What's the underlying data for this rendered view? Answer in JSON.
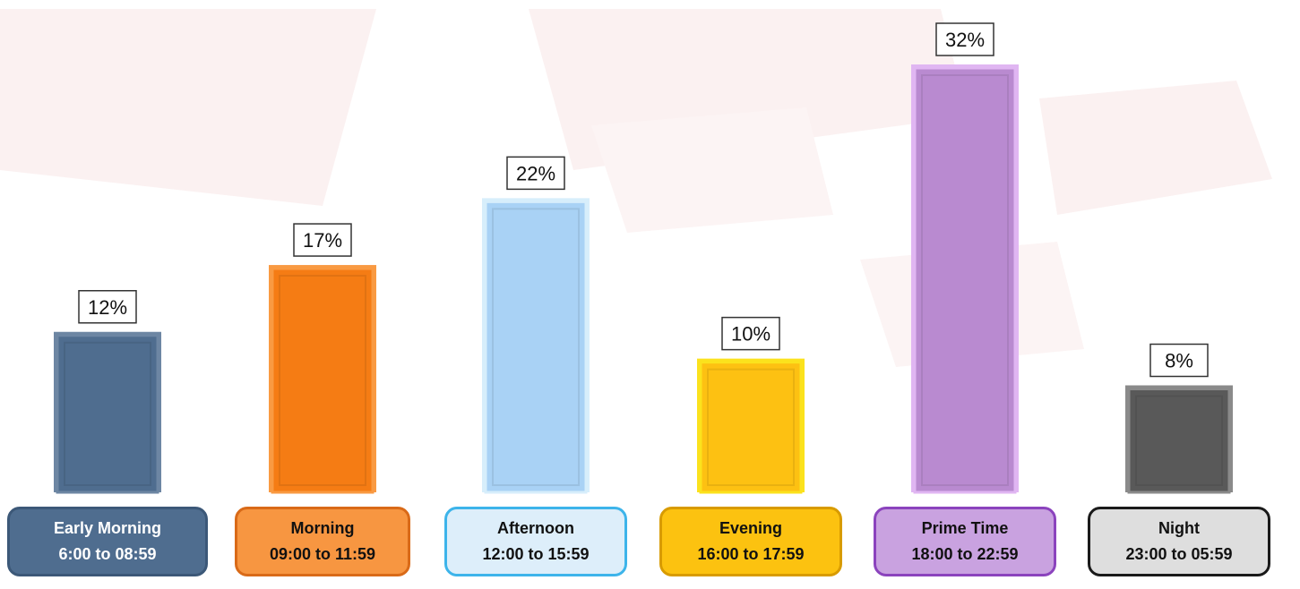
{
  "chart_data": {
    "type": "bar",
    "categories": [
      "Early Morning",
      "Morning",
      "Afternoon",
      "Evening",
      "Prime Time",
      "Night"
    ],
    "time_ranges": [
      "6:00 to 08:59",
      "09:00 to 11:59",
      "12:00 to 15:59",
      "16:00 to 17:59",
      "18:00 to 22:59",
      "23:00 to 05:59"
    ],
    "values": [
      12,
      17,
      22,
      10,
      32,
      8
    ],
    "value_labels": [
      "12%",
      "17%",
      "22%",
      "10%",
      "32%",
      "8%"
    ],
    "unit": "%",
    "ylim": [
      0,
      36
    ],
    "grid": false,
    "legend": "none",
    "colors": {
      "bars": [
        "#4f6d8f",
        "#f57c14",
        "#a9d2f5",
        "#fdc112",
        "#b98ad0",
        "#595959"
      ],
      "bar_edges": [
        "#6d86a3",
        "#f99a42",
        "#d7eefb",
        "#fbe21d",
        "#e0b6f2",
        "#8a8a8a"
      ],
      "box_fills": [
        "#4f6d8f",
        "#f79641",
        "#ddeefa",
        "#fcc210",
        "#c9a2e0",
        "#dedede"
      ],
      "box_borders": [
        "#3c5878",
        "#d96a18",
        "#3db4ea",
        "#d89b00",
        "#8b43bd",
        "#1a1a1a"
      ],
      "box_text": [
        "#ffffff",
        "#111111",
        "#111111",
        "#111111",
        "#111111",
        "#111111"
      ]
    }
  }
}
